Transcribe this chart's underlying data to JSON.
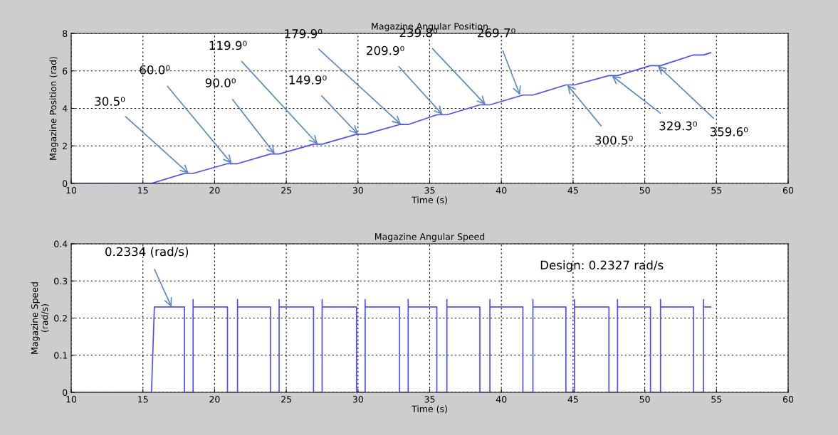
{
  "chart_data": [
    {
      "type": "line",
      "title": "Magazine Angular Position",
      "xlabel": "Time (s)",
      "ylabel": "Magazine Position (rad)",
      "xlim": [
        10,
        60
      ],
      "xticks": [
        10,
        15,
        20,
        25,
        30,
        35,
        40,
        45,
        50,
        55,
        60
      ],
      "ylim": [
        0,
        8
      ],
      "yticks": [
        0,
        2,
        4,
        6,
        8
      ],
      "grid": true,
      "series": [
        {
          "color": "#4d4dff",
          "x": [
            10,
            15.6,
            17.9,
            18.5,
            20.9,
            21.6,
            23.9,
            24.5,
            26.9,
            27.5,
            29.9,
            30.5,
            32.9,
            33.5,
            35.5,
            36.2,
            38.5,
            39.2,
            41.5,
            42.2,
            44.5,
            45.1,
            47.5,
            48.1,
            50.4,
            51.1,
            53.4,
            54.1,
            54.6
          ],
          "values": [
            0,
            0,
            0.53,
            0.53,
            1.05,
            1.05,
            1.57,
            1.57,
            2.09,
            2.09,
            2.62,
            2.62,
            3.14,
            3.14,
            3.66,
            3.66,
            4.19,
            4.19,
            4.71,
            4.71,
            5.25,
            5.25,
            5.75,
            5.75,
            6.28,
            6.28,
            6.85,
            6.85,
            6.97
          ]
        }
      ],
      "annotations": [
        {
          "text": "30.5⁰",
          "x": 18.2,
          "y": 0.53
        },
        {
          "text": "60.0⁰",
          "x": 21.2,
          "y": 1.05
        },
        {
          "text": "90.0⁰",
          "x": 24.2,
          "y": 1.57
        },
        {
          "text": "119.9⁰",
          "x": 27.2,
          "y": 2.09
        },
        {
          "text": "149.9⁰",
          "x": 30.0,
          "y": 2.62
        },
        {
          "text": "179.9⁰",
          "x": 33.0,
          "y": 3.14
        },
        {
          "text": "209.9⁰",
          "x": 35.9,
          "y": 3.66
        },
        {
          "text": "239.8⁰",
          "x": 38.9,
          "y": 4.19
        },
        {
          "text": "269.7⁰",
          "x": 41.3,
          "y": 4.71
        },
        {
          "text": "300.5⁰",
          "x": 44.6,
          "y": 5.25
        },
        {
          "text": "329.3⁰",
          "x": 47.7,
          "y": 5.75
        },
        {
          "text": "359.6⁰",
          "x": 50.9,
          "y": 6.28
        }
      ]
    },
    {
      "type": "line",
      "title": "Magazine Angular Speed",
      "xlabel": "Time (s)",
      "ylabel": "Magazine Speed\n(rad/s)",
      "xlim": [
        10,
        60
      ],
      "xticks": [
        10,
        15,
        20,
        25,
        30,
        35,
        40,
        45,
        50,
        55,
        60
      ],
      "ylim": [
        0,
        0.4
      ],
      "yticks": [
        0,
        0.1,
        0.2,
        0.3,
        0.4
      ],
      "grid": true,
      "series": [
        {
          "color": "#4d4dff",
          "x": [
            10,
            15.6,
            15.8,
            17.9,
            17.9,
            18.5,
            18.5,
            18.5,
            20.9,
            20.9,
            21.6,
            21.6,
            21.6,
            23.9,
            23.9,
            24.5,
            24.5,
            24.5,
            26.9,
            26.9,
            27.5,
            27.5,
            27.5,
            29.9,
            29.9,
            30.5,
            30.5,
            30.5,
            32.9,
            32.9,
            33.5,
            33.5,
            33.5,
            35.5,
            35.5,
            36.2,
            36.2,
            36.2,
            38.5,
            38.5,
            39.2,
            39.2,
            39.2,
            41.5,
            41.5,
            42.2,
            42.2,
            42.2,
            44.5,
            44.5,
            45.1,
            45.1,
            45.1,
            47.5,
            47.5,
            48.1,
            48.1,
            48.1,
            50.4,
            50.4,
            51.1,
            51.1,
            51.1,
            53.4,
            53.4,
            54.1,
            54.1,
            54.1,
            54.6
          ],
          "values": [
            0,
            0,
            0.23,
            0.23,
            0,
            0,
            0.25,
            0.23,
            0.23,
            0,
            0,
            0.25,
            0.23,
            0.23,
            0,
            0,
            0.25,
            0.23,
            0.23,
            0,
            0,
            0.25,
            0.23,
            0.23,
            0,
            0,
            0.25,
            0.23,
            0.23,
            0,
            0,
            0.25,
            0.23,
            0.23,
            0,
            0,
            0.25,
            0.23,
            0.23,
            0,
            0,
            0.25,
            0.23,
            0.23,
            0,
            0,
            0.25,
            0.23,
            0.23,
            0,
            0,
            0.25,
            0.23,
            0.23,
            0,
            0,
            0.25,
            0.23,
            0.23,
            0,
            0,
            0.25,
            0.23,
            0.23,
            0,
            0,
            0.25,
            0.23,
            0.23
          ]
        }
      ],
      "annotations": [
        {
          "text": "0.2334 (rad/s)",
          "x": 17,
          "y": 0.23
        },
        "Design: 0.2327 rad/s"
      ]
    }
  ]
}
